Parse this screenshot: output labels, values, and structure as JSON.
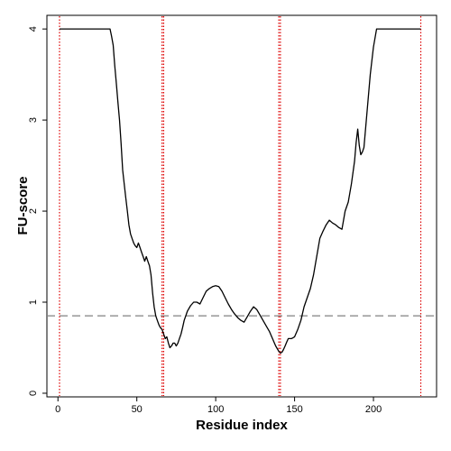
{
  "chart_data": {
    "type": "line",
    "title": "",
    "xlabel": "Residue index",
    "ylabel": "FU-score",
    "xlim": [
      -7,
      240
    ],
    "ylim": [
      -0.04,
      4.15
    ],
    "xticks": [
      0,
      50,
      100,
      150,
      200
    ],
    "yticks": [
      0,
      1,
      2,
      3,
      4
    ],
    "grid": false,
    "legend": "none",
    "series": [
      {
        "color": "#000000",
        "x": [
          1,
          5,
          10,
          15,
          20,
          25,
          30,
          33,
          34,
          35,
          36,
          37,
          38,
          39,
          40,
          41,
          42,
          43,
          44,
          45,
          46,
          47,
          48,
          49,
          50,
          51,
          52,
          53,
          54,
          55,
          56,
          57,
          58,
          59,
          60,
          61,
          62,
          63,
          64,
          65,
          66,
          67,
          68,
          69,
          70,
          71,
          72,
          73,
          74,
          75,
          76,
          77,
          78,
          79,
          80,
          82,
          84,
          86,
          88,
          90,
          92,
          94,
          96,
          98,
          100,
          102,
          104,
          106,
          108,
          110,
          112,
          114,
          116,
          118,
          120,
          122,
          124,
          126,
          128,
          130,
          132,
          134,
          136,
          138,
          140,
          141,
          142,
          143,
          144,
          145,
          146,
          148,
          150,
          152,
          154,
          156,
          158,
          160,
          162,
          164,
          166,
          168,
          170,
          172,
          174,
          176,
          178,
          180,
          182,
          184,
          186,
          188,
          189,
          190,
          191,
          192,
          193,
          194,
          196,
          198,
          200,
          202,
          205,
          210,
          215,
          220,
          225,
          230
        ],
        "y": [
          4.0,
          4.0,
          4.0,
          4.0,
          4.0,
          4.0,
          4.0,
          4.0,
          3.92,
          3.82,
          3.6,
          3.4,
          3.2,
          3.0,
          2.75,
          2.45,
          2.3,
          2.15,
          2.0,
          1.85,
          1.75,
          1.7,
          1.65,
          1.62,
          1.6,
          1.65,
          1.6,
          1.55,
          1.5,
          1.45,
          1.5,
          1.45,
          1.4,
          1.3,
          1.1,
          0.95,
          0.85,
          0.8,
          0.75,
          0.72,
          0.7,
          0.65,
          0.6,
          0.62,
          0.55,
          0.5,
          0.52,
          0.55,
          0.55,
          0.52,
          0.55,
          0.6,
          0.65,
          0.72,
          0.8,
          0.9,
          0.96,
          1.0,
          1.0,
          0.98,
          1.05,
          1.12,
          1.15,
          1.17,
          1.18,
          1.17,
          1.12,
          1.05,
          0.98,
          0.92,
          0.87,
          0.83,
          0.8,
          0.78,
          0.84,
          0.9,
          0.95,
          0.92,
          0.86,
          0.8,
          0.74,
          0.68,
          0.6,
          0.52,
          0.46,
          0.44,
          0.45,
          0.48,
          0.52,
          0.56,
          0.6,
          0.6,
          0.62,
          0.7,
          0.8,
          0.95,
          1.05,
          1.15,
          1.3,
          1.5,
          1.7,
          1.78,
          1.85,
          1.9,
          1.87,
          1.85,
          1.82,
          1.8,
          2.0,
          2.1,
          2.3,
          2.55,
          2.75,
          2.9,
          2.72,
          2.62,
          2.65,
          2.7,
          3.1,
          3.5,
          3.8,
          4.0,
          4.0,
          4.0,
          4.0,
          4.0,
          4.0,
          4.0
        ]
      }
    ],
    "hlines": [
      {
        "y": 0.85,
        "color": "#808080",
        "style": "dashed"
      }
    ],
    "vlines": [
      {
        "x": 1,
        "color": "#dd0000",
        "style": "dotted"
      },
      {
        "x": 66,
        "color": "#dd0000",
        "style": "dotted"
      },
      {
        "x": 67,
        "color": "#dd0000",
        "style": "dotted"
      },
      {
        "x": 140,
        "color": "#dd0000",
        "style": "dotted"
      },
      {
        "x": 141,
        "color": "#dd0000",
        "style": "dotted"
      },
      {
        "x": 230,
        "color": "#dd0000",
        "style": "dotted"
      }
    ]
  }
}
